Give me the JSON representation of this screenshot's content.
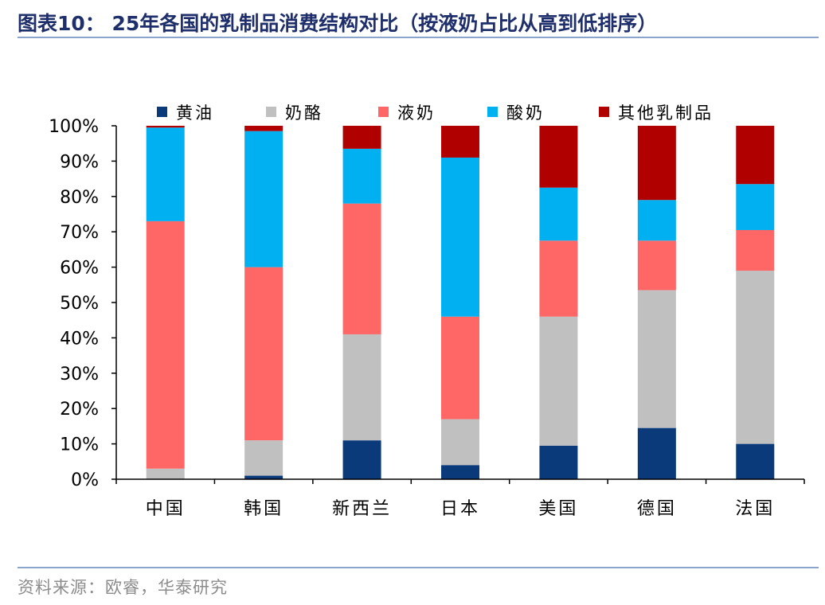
{
  "title": "图表10： 25年各国的乳制品消费结构对比（按液奶占比从高到低排序）",
  "source": "资料来源：欧睿，华泰研究",
  "colors": {
    "butter": "#0b3a7a",
    "cheese": "#c0c0c0",
    "liquid_milk": "#ff6666",
    "yogurt": "#00b0f0",
    "other": "#b00000"
  },
  "chart_data": {
    "type": "bar",
    "stacked": true,
    "title": "",
    "xlabel": "",
    "ylabel": "",
    "ylim": [
      0,
      100
    ],
    "yticks": [
      "0%",
      "10%",
      "20%",
      "30%",
      "40%",
      "50%",
      "60%",
      "70%",
      "80%",
      "90%",
      "100%"
    ],
    "legend_position": "top",
    "categories": [
      "中国",
      "韩国",
      "新西兰",
      "日本",
      "美国",
      "德国",
      "法国"
    ],
    "series": [
      {
        "name": "黄油",
        "key": "butter",
        "values": [
          0,
          1,
          11,
          4,
          9.5,
          14.5,
          10
        ]
      },
      {
        "name": "奶酪",
        "key": "cheese",
        "values": [
          3,
          10,
          30,
          13,
          36.5,
          39,
          49
        ]
      },
      {
        "name": "液奶",
        "key": "liquid_milk",
        "values": [
          70,
          49,
          37,
          29,
          21.5,
          14,
          11.5
        ]
      },
      {
        "name": "酸奶",
        "key": "yogurt",
        "values": [
          26.5,
          38.5,
          15.5,
          45,
          15,
          11.5,
          13
        ]
      },
      {
        "name": "其他乳制品",
        "key": "other",
        "values": [
          0.5,
          1.5,
          6.5,
          9,
          17.5,
          21,
          16.5
        ]
      }
    ]
  }
}
